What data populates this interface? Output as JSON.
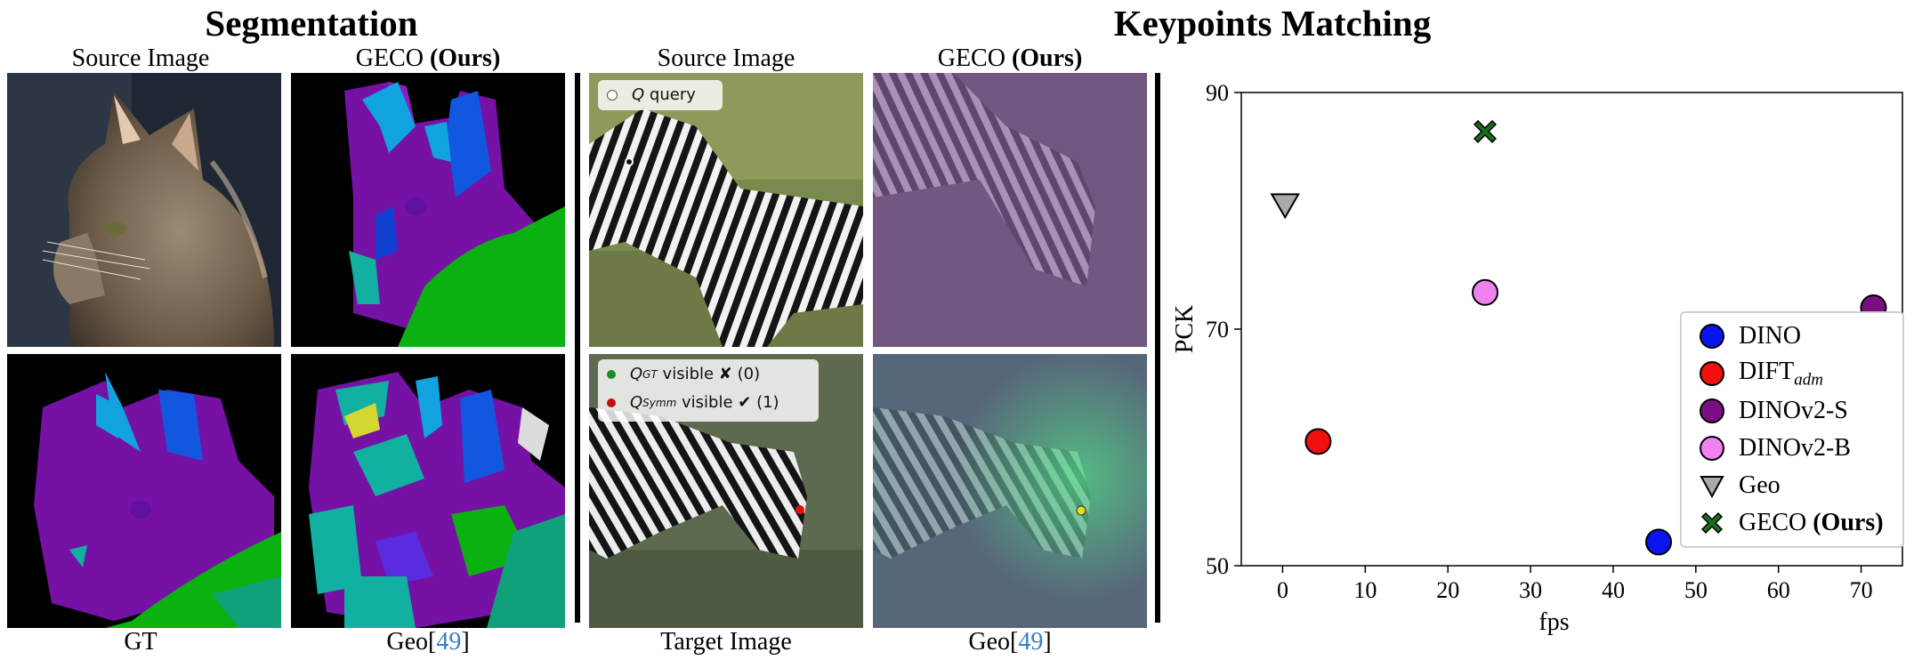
{
  "titles": {
    "segmentation": "Segmentation",
    "keypoints": "Keypoints Matching"
  },
  "captions": {
    "seg_top_left": "Source Image",
    "seg_top_right_prefix": "GECO ",
    "seg_top_right_bold": "(Ours)",
    "seg_bottom_left": "GT",
    "seg_bottom_right_prefix": "Geo[",
    "seg_bottom_right_ref": "49",
    "seg_bottom_right_suffix": "]",
    "kp_top_left": "Source Image",
    "kp_top_right_prefix": "GECO ",
    "kp_top_right_bold": "(Ours)",
    "kp_bottom_left": "Target Image",
    "kp_bottom_right_prefix": "Geo[",
    "kp_bottom_right_ref": "49",
    "kp_bottom_right_suffix": "]"
  },
  "overlays": {
    "query_symbol": "Q",
    "query_label": "query",
    "gt_symbol": "Q",
    "gt_sub": "GT",
    "gt_label": "visible ✘ (0)",
    "symm_symbol": "Q",
    "symm_sub": "Symm",
    "symm_label": "visible ✔ (1)"
  },
  "chart_data": {
    "type": "scatter",
    "xlabel": "fps",
    "ylabel": "PCK",
    "xlim": [
      -5,
      75
    ],
    "ylim": [
      50,
      90
    ],
    "xticks": [
      0,
      10,
      20,
      30,
      40,
      50,
      60,
      70
    ],
    "yticks": [
      50,
      70,
      90
    ],
    "grid": false,
    "legend_position": "lower-right",
    "series": [
      {
        "name": "DINO",
        "x": 45.5,
        "y": 52,
        "marker": "circle",
        "color": "#0a14f0"
      },
      {
        "name": "DIFT",
        "name_sub": "adm",
        "x": 4.3,
        "y": 60.5,
        "marker": "circle",
        "color": "#f01010"
      },
      {
        "name": "DINOv2-S",
        "x": 71.5,
        "y": 71.8,
        "marker": "circle",
        "color": "#7a0f84"
      },
      {
        "name": "DINOv2-B",
        "x": 24.5,
        "y": 73.1,
        "marker": "circle",
        "color": "#ee82ee"
      },
      {
        "name": "Geo",
        "x": 0.3,
        "y": 80.5,
        "marker": "triangle-down",
        "color": "#a9a9a9"
      },
      {
        "name": "GECO",
        "name_bold": "(Ours)",
        "x": 24.5,
        "y": 86.7,
        "marker": "x",
        "color": "#1a6e1a"
      }
    ]
  }
}
